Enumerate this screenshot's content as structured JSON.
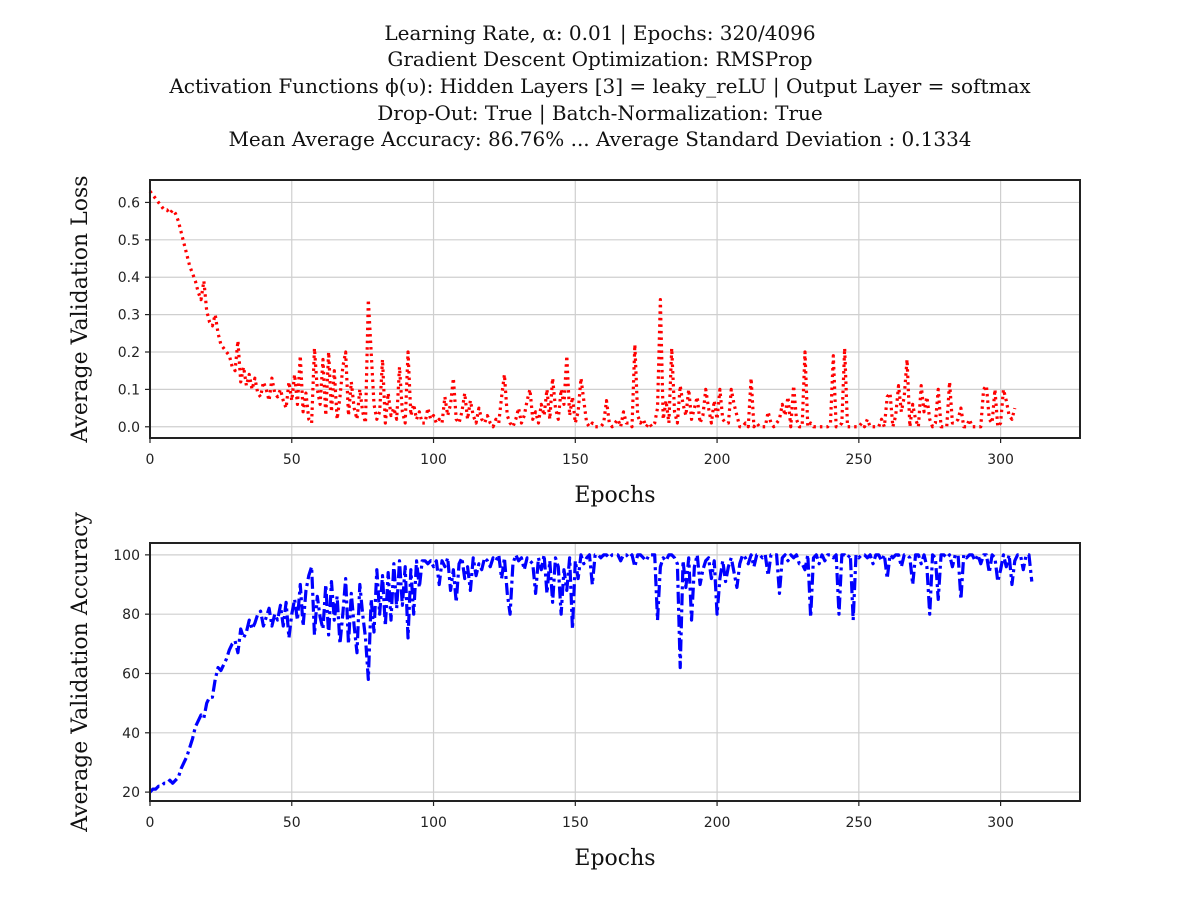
{
  "title_lines": [
    "Learning Rate, α: 0.01 | Epochs: 320/4096",
    "Gradient Descent Optimization: RMSProp",
    "Activation Functions ϕ(υ): Hidden Layers [3] = leaky_reLU | Output Layer = softmax",
    "Drop-Out: True | Batch-Normalization: True",
    "Mean Average Accuracy: 86.76% ... Average Standard Deviation : 0.1334"
  ],
  "chart_data": [
    {
      "type": "line",
      "title": "",
      "xlabel": "Epochs",
      "ylabel": "Average Validation Loss",
      "xlim": [
        0,
        328
      ],
      "ylim": [
        -0.03,
        0.66
      ],
      "xticks": [
        0,
        50,
        100,
        150,
        200,
        250,
        300
      ],
      "yticks": [
        0.0,
        0.1,
        0.2,
        0.3,
        0.4,
        0.5,
        0.6
      ],
      "grid": true,
      "series": [
        {
          "color": "#ff0000",
          "style": "dotted",
          "x_start": 0,
          "x_step": 1,
          "values": [
            0.63,
            0.62,
            0.61,
            0.6,
            0.59,
            0.58,
            0.58,
            0.57,
            0.58,
            0.57,
            0.55,
            0.52,
            0.49,
            0.46,
            0.43,
            0.41,
            0.39,
            0.36,
            0.34,
            0.39,
            0.31,
            0.28,
            0.27,
            0.3,
            0.25,
            0.22,
            0.21,
            0.2,
            0.19,
            0.16,
            0.15,
            0.23,
            0.12,
            0.16,
            0.11,
            0.14,
            0.1,
            0.13,
            0.09,
            0.08,
            0.12,
            0.1,
            0.07,
            0.13,
            0.09,
            0.08,
            0.1,
            0.07,
            0.05,
            0.12,
            0.07,
            0.14,
            0.06,
            0.19,
            0.04,
            0.09,
            0.02,
            0.01,
            0.21,
            0.1,
            0.06,
            0.18,
            0.03,
            0.2,
            0.04,
            0.15,
            0.02,
            0.08,
            0.16,
            0.2,
            0.03,
            0.12,
            0.05,
            0.02,
            0.1,
            0.04,
            0.01,
            0.34,
            0.2,
            0.06,
            0.02,
            0.04,
            0.18,
            0.01,
            0.09,
            0.03,
            0.05,
            0.02,
            0.16,
            0.04,
            0.01,
            0.2,
            0.03,
            0.06,
            0.02,
            0.04,
            0.01,
            0.01,
            0.05,
            0.02,
            0.03,
            0.01,
            0.02,
            0.01,
            0.08,
            0.03,
            0.06,
            0.13,
            0.02,
            0.01,
            0.04,
            0.09,
            0.02,
            0.07,
            0.03,
            0.01,
            0.05,
            0.02,
            0.01,
            0.03,
            0.01,
            0.0,
            0.02,
            0.01,
            0.08,
            0.14,
            0.03,
            0.01,
            0.0,
            0.02,
            0.05,
            0.01,
            0.03,
            0.07,
            0.1,
            0.02,
            0.04,
            0.01,
            0.06,
            0.03,
            0.1,
            0.02,
            0.13,
            0.05,
            0.02,
            0.1,
            0.06,
            0.19,
            0.03,
            0.08,
            0.01,
            0.04,
            0.13,
            0.07,
            0.01,
            0.0,
            0.01,
            0.0,
            0.0,
            0.0,
            0.01,
            0.07,
            0.01,
            0.0,
            0.01,
            0.02,
            0.0,
            0.04,
            0.01,
            0.01,
            0.0,
            0.22,
            0.03,
            0.01,
            0.02,
            0.0,
            0.01,
            0.0,
            0.01,
            0.05,
            0.34,
            0.02,
            0.07,
            0.01,
            0.21,
            0.04,
            0.01,
            0.11,
            0.06,
            0.03,
            0.1,
            0.02,
            0.05,
            0.08,
            0.01,
            0.03,
            0.1,
            0.05,
            0.01,
            0.07,
            0.02,
            0.1,
            0.02,
            0.01,
            0.01,
            0.1,
            0.06,
            0.03,
            0.0,
            0.0,
            0.01,
            0.0,
            0.13,
            0.0,
            0.01,
            0.0,
            0.0,
            0.0,
            0.04,
            0.01,
            0.0,
            0.01,
            0.02,
            0.06,
            0.03,
            0.08,
            0.0,
            0.11,
            0.02,
            0.0,
            0.0,
            0.2,
            0.0,
            0.01,
            0.0,
            0.0,
            0.0,
            0.0,
            0.0,
            0.0,
            0.01,
            0.19,
            0.0,
            0.0,
            0.01,
            0.21,
            0.0,
            0.0,
            0.0,
            0.0,
            0.0,
            0.01,
            0.0,
            0.02,
            0.0,
            0.0,
            0.0,
            0.0,
            0.02,
            0.0,
            0.08,
            0.09,
            0.0,
            0.03,
            0.11,
            0.04,
            0.08,
            0.18,
            0.0,
            0.06,
            0.02,
            0.0,
            0.11,
            0.04,
            0.08,
            0.02,
            0.0,
            0.01,
            0.1,
            0.0,
            0.0,
            0.0,
            0.12,
            0.01,
            0.01,
            0.02,
            0.05,
            0.0,
            0.0,
            0.02,
            0.0,
            0.0,
            0.0,
            0.0,
            0.1,
            0.11,
            0.02,
            0.01,
            0.1,
            0.0,
            0.01,
            0.1,
            0.07,
            0.03,
            0.02,
            0.05
          ]
        }
      ]
    },
    {
      "type": "line",
      "title": "",
      "xlabel": "Epochs",
      "ylabel": "Average Validation Accuracy",
      "xlim": [
        0,
        328
      ],
      "ylim": [
        17,
        104
      ],
      "xticks": [
        0,
        50,
        100,
        150,
        200,
        250,
        300
      ],
      "yticks": [
        20,
        40,
        60,
        80,
        100
      ],
      "grid": true,
      "series": [
        {
          "color": "#0000ff",
          "style": "dash-dot",
          "x_start": 0,
          "x_step": 1,
          "values": [
            20,
            21,
            21,
            22,
            22,
            23,
            23,
            24,
            23,
            24,
            25,
            28,
            30,
            32,
            35,
            38,
            42,
            44,
            46,
            45,
            50,
            52,
            52,
            58,
            62,
            61,
            63,
            65,
            68,
            70,
            71,
            67,
            75,
            72,
            74,
            78,
            75,
            77,
            80,
            81,
            76,
            79,
            82,
            76,
            80,
            78,
            83,
            76,
            84,
            72,
            80,
            85,
            78,
            90,
            76,
            88,
            93,
            96,
            73,
            86,
            79,
            75,
            90,
            73,
            91,
            78,
            86,
            70,
            80,
            92,
            70,
            87,
            76,
            67,
            90,
            80,
            72,
            58,
            85,
            74,
            95,
            80,
            93,
            76,
            94,
            78,
            97,
            82,
            98,
            83,
            96,
            72,
            95,
            80,
            98,
            89,
            98,
            98,
            97,
            98,
            96,
            98,
            90,
            98,
            96,
            99,
            88,
            95,
            84,
            97,
            99,
            92,
            96,
            88,
            99,
            93,
            97,
            95,
            99,
            98,
            96,
            99,
            98,
            100,
            92,
            99,
            87,
            80,
            97,
            100,
            98,
            99,
            95,
            99,
            98,
            97,
            87,
            99,
            95,
            100,
            87,
            98,
            84,
            99,
            96,
            80,
            95,
            88,
            99,
            75,
            98,
            92,
            100,
            97,
            99,
            100,
            90,
            100,
            100,
            99,
            100,
            100,
            99,
            100,
            100,
            100,
            98,
            100,
            100,
            99,
            100,
            96,
            100,
            100,
            99,
            98,
            100,
            100,
            100,
            78,
            96,
            99,
            98,
            100,
            100,
            99,
            97,
            62,
            98,
            89,
            99,
            78,
            96,
            100,
            90,
            95,
            98,
            99,
            92,
            98,
            80,
            92,
            98,
            91,
            96,
            99,
            94,
            89,
            97,
            100,
            99,
            97,
            100,
            96,
            100,
            100,
            99,
            100,
            93,
            100,
            100,
            100,
            87,
            99,
            100,
            98,
            100,
            99,
            100,
            97,
            97,
            95,
            100,
            79,
            99,
            100,
            97,
            100,
            98,
            100,
            100,
            99,
            100,
            80,
            100,
            100,
            99,
            100,
            78,
            100,
            99,
            100,
            100,
            99,
            100,
            97,
            100,
            100,
            98,
            100,
            92,
            100,
            99,
            100,
            100,
            96,
            100,
            100,
            99,
            90,
            100,
            100,
            97,
            100,
            96,
            80,
            100,
            99,
            85,
            100,
            100,
            99,
            100,
            96,
            100,
            100,
            85,
            100,
            99,
            100,
            100,
            98,
            100,
            97,
            100,
            100,
            94,
            100,
            99,
            91,
            95,
            100,
            96,
            100,
            90,
            98,
            100,
            100,
            95,
            100,
            100,
            91
          ]
        }
      ]
    }
  ]
}
